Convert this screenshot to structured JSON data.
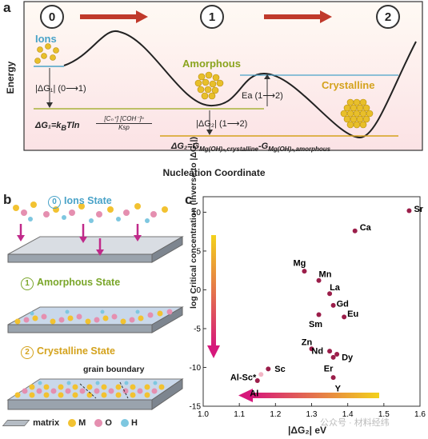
{
  "panel_a": {
    "letter": "a",
    "y_label": "Energy",
    "x_label": "Nucleation Coordinate",
    "stages": [
      "0",
      "1",
      "2"
    ],
    "states": {
      "ions": "Ions",
      "amorphous": "Amorphous",
      "crystalline": "Crystalline"
    },
    "dg1": "|ΔG₁| (0⟶1)",
    "dg2": "|ΔG₂| (1⟶2)",
    "ea": "Ea (1⟶2)",
    "eq1_lhs": "ΔG₁=k",
    "eq1_sub": "B",
    "eq1_mid": "Tln",
    "eq1_num": "[Cₙ⁺] [COH⁻]ⁿ",
    "eq1_den": "Ksp",
    "eq2": "ΔG₂=G",
    "eq2_sub1": "Mg(OH)ₙ,crystalline",
    "eq2_minus": "-G",
    "eq2_sub2": "Mg(OH)ₙ,amorphous",
    "colors": {
      "ions_line": "#4aa3c8",
      "amorph_line": "#a8b23a",
      "cryst_line": "#d4a21c",
      "arrow": "#c0392b",
      "bg_top": "#fff8f0",
      "bg_bot": "#fbe3e6"
    }
  },
  "panel_b": {
    "letter": "b",
    "states": [
      {
        "num": "0",
        "title": "Ions State"
      },
      {
        "num": "1",
        "title": "Amorphous State"
      },
      {
        "num": "2",
        "title": "Crystalline State"
      }
    ],
    "grain_boundary": "grain boundary",
    "legend": {
      "matrix": "matrix",
      "m": "M",
      "o": "O",
      "h": "H"
    },
    "colors": {
      "m": "#f2c231",
      "o": "#e58fb0",
      "h": "#7ec7e0",
      "arrow": "#c02a8a"
    }
  },
  "panel_c": {
    "letter": "c",
    "chart_data": {
      "type": "scatter",
      "xlabel": "|ΔG₂| eV",
      "ylabel": "log Critical concentration (inverse to |ΔG₁|)",
      "xlim": [
        1.0,
        1.6
      ],
      "ylim": [
        -15,
        12
      ],
      "xticks": [
        1.0,
        1.1,
        1.2,
        1.3,
        1.4,
        1.5,
        1.6
      ],
      "yticks": [
        -15,
        -10,
        -5,
        0,
        5,
        10
      ],
      "points": [
        {
          "label": "Sr",
          "x": 1.57,
          "y": 10.2
        },
        {
          "label": "Ca",
          "x": 1.42,
          "y": 7.6
        },
        {
          "label": "Mg",
          "x": 1.28,
          "y": 2.4
        },
        {
          "label": "Mn",
          "x": 1.32,
          "y": 1.2
        },
        {
          "label": "La",
          "x": 1.35,
          "y": -0.5
        },
        {
          "label": "Gd",
          "x": 1.36,
          "y": -2.0
        },
        {
          "label": "Eu",
          "x": 1.39,
          "y": -3.5
        },
        {
          "label": "Sm",
          "x": 1.32,
          "y": -3.2
        },
        {
          "label": "Zn",
          "x": 1.3,
          "y": -7.6
        },
        {
          "label": "Nd",
          "x": 1.35,
          "y": -7.9
        },
        {
          "label": "Dy",
          "x": 1.37,
          "y": -8.3
        },
        {
          "label": "Er",
          "x": 1.36,
          "y": -8.7
        },
        {
          "label": "Y",
          "x": 1.36,
          "y": -11.3
        },
        {
          "label": "Sc",
          "x": 1.18,
          "y": -10.2
        },
        {
          "label": "Al-Sc*",
          "x": 1.16,
          "y": -10.9
        },
        {
          "label": "Al",
          "x": 1.15,
          "y": -11.7
        }
      ],
      "grid": false
    },
    "colors": {
      "point": "#9b1e4a",
      "arrow_start": "#f3d21b",
      "arrow_end": "#d6177b"
    }
  },
  "watermark": "公众号 · 材料经纬"
}
